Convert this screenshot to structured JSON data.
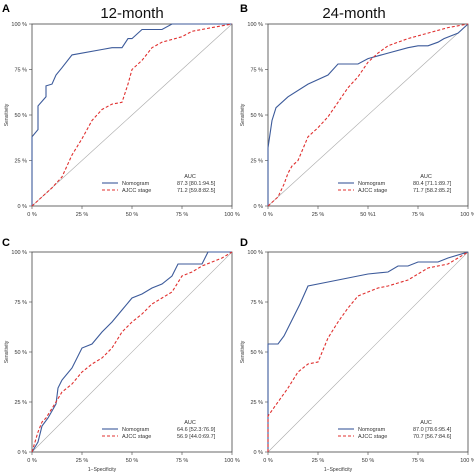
{
  "colors": {
    "nomogram": "#3c5a9a",
    "ajcc": "#e0302f",
    "diagonal": "#aaaaaa",
    "frame": "#444444"
  },
  "chart_data": [
    {
      "panel": "A",
      "type": "line",
      "title": "12-month",
      "xlabel": "",
      "ylabel": "Sensitivity",
      "xlim": [
        0,
        100
      ],
      "ylim": [
        0,
        100
      ],
      "x_ticks": [
        "0 %",
        "25 %",
        "50 %",
        "75 %",
        "100 %"
      ],
      "y_ticks": [
        "0 %",
        "25 %",
        "50 %",
        "75 %",
        "100 %"
      ],
      "legend": {
        "header": "AUC",
        "placement": "bottom-right"
      },
      "series": [
        {
          "name": "Nomogram",
          "auc": "87.3 [80.1:94.5]",
          "style": "solid",
          "points": [
            [
              0,
              0
            ],
            [
              0,
              38
            ],
            [
              3,
              42
            ],
            [
              3,
              55
            ],
            [
              7,
              60
            ],
            [
              7,
              66
            ],
            [
              10,
              67
            ],
            [
              12,
              72
            ],
            [
              15,
              76
            ],
            [
              20,
              83
            ],
            [
              35,
              86
            ],
            [
              40,
              87
            ],
            [
              45,
              87
            ],
            [
              48,
              92
            ],
            [
              50,
              92
            ],
            [
              55,
              97
            ],
            [
              65,
              97
            ],
            [
              70,
              100
            ],
            [
              100,
              100
            ]
          ]
        },
        {
          "name": "AJCC stage",
          "auc": "71.2 [59.8:82.5]",
          "style": "dashed",
          "points": [
            [
              0,
              0
            ],
            [
              5,
              5
            ],
            [
              10,
              10
            ],
            [
              15,
              16
            ],
            [
              20,
              28
            ],
            [
              25,
              37
            ],
            [
              30,
              47
            ],
            [
              35,
              53
            ],
            [
              40,
              56
            ],
            [
              45,
              57
            ],
            [
              48,
              67
            ],
            [
              50,
              75
            ],
            [
              55,
              80
            ],
            [
              60,
              87
            ],
            [
              65,
              90
            ],
            [
              75,
              93
            ],
            [
              80,
              96
            ],
            [
              90,
              98
            ],
            [
              100,
              100
            ]
          ]
        }
      ]
    },
    {
      "panel": "B",
      "type": "line",
      "title": "24-month",
      "xlabel": "",
      "ylabel": "Sensitivity",
      "xlim": [
        0,
        100
      ],
      "ylim": [
        0,
        100
      ],
      "x_ticks": [
        "0 %",
        "25 %",
        "50 %1",
        "75 %",
        "100 %"
      ],
      "y_ticks": [
        "0 %",
        "25 %",
        "50 %",
        "75 %",
        "100 %"
      ],
      "legend": {
        "header": "AUC",
        "placement": "bottom-right"
      },
      "series": [
        {
          "name": "Nomogram",
          "auc": "80.4 [71.1:89.7]",
          "style": "solid",
          "points": [
            [
              0,
              0
            ],
            [
              0,
              32
            ],
            [
              2,
              47
            ],
            [
              4,
              54
            ],
            [
              10,
              60
            ],
            [
              20,
              67
            ],
            [
              30,
              72
            ],
            [
              35,
              78
            ],
            [
              45,
              78
            ],
            [
              50,
              81
            ],
            [
              60,
              84
            ],
            [
              70,
              87
            ],
            [
              75,
              88
            ],
            [
              80,
              88
            ],
            [
              85,
              90
            ],
            [
              88,
              92
            ],
            [
              95,
              95
            ],
            [
              100,
              100
            ]
          ]
        },
        {
          "name": "AJCC stage",
          "auc": "71.7 [58.2:85.2]",
          "style": "dashed",
          "points": [
            [
              0,
              0
            ],
            [
              5,
              5
            ],
            [
              8,
              12
            ],
            [
              10,
              18
            ],
            [
              12,
              22
            ],
            [
              15,
              25
            ],
            [
              20,
              38
            ],
            [
              25,
              43
            ],
            [
              30,
              49
            ],
            [
              35,
              57
            ],
            [
              40,
              65
            ],
            [
              45,
              71
            ],
            [
              50,
              79
            ],
            [
              55,
              84
            ],
            [
              60,
              88
            ],
            [
              70,
              92
            ],
            [
              80,
              95
            ],
            [
              90,
              98
            ],
            [
              100,
              100
            ]
          ]
        }
      ]
    },
    {
      "panel": "C",
      "type": "line",
      "title": "",
      "xlabel": "1−Specificity",
      "ylabel": "Sensitivity",
      "xlim": [
        0,
        100
      ],
      "ylim": [
        0,
        100
      ],
      "x_ticks": [
        "0 %",
        "25 %",
        "50 %",
        "75 %",
        "100 %"
      ],
      "y_ticks": [
        "0 %",
        "25 %",
        "50 %",
        "75 %",
        "100 %"
      ],
      "legend": {
        "header": "AUC",
        "placement": "bottom-right"
      },
      "series": [
        {
          "name": "Nomogram",
          "auc": "64.6 [52.3:76.9]",
          "style": "solid",
          "points": [
            [
              0,
              0
            ],
            [
              3,
              5
            ],
            [
              5,
              13
            ],
            [
              8,
              17
            ],
            [
              12,
              24
            ],
            [
              13,
              32
            ],
            [
              15,
              36
            ],
            [
              20,
              42
            ],
            [
              25,
              52
            ],
            [
              30,
              54
            ],
            [
              35,
              60
            ],
            [
              40,
              65
            ],
            [
              45,
              71
            ],
            [
              50,
              77
            ],
            [
              55,
              79
            ],
            [
              60,
              82
            ],
            [
              65,
              84
            ],
            [
              70,
              88
            ],
            [
              73,
              94
            ],
            [
              80,
              94
            ],
            [
              85,
              94
            ],
            [
              88,
              100
            ],
            [
              100,
              100
            ]
          ]
        },
        {
          "name": "AJCC stage",
          "auc": "56.9 [44.0:69.7]",
          "style": "dashed",
          "points": [
            [
              0,
              0
            ],
            [
              3,
              10
            ],
            [
              5,
              15
            ],
            [
              7,
              17
            ],
            [
              12,
              25
            ],
            [
              15,
              30
            ],
            [
              20,
              34
            ],
            [
              25,
              40
            ],
            [
              30,
              44
            ],
            [
              35,
              47
            ],
            [
              40,
              52
            ],
            [
              45,
              60
            ],
            [
              50,
              65
            ],
            [
              55,
              69
            ],
            [
              60,
              74
            ],
            [
              65,
              77
            ],
            [
              70,
              80
            ],
            [
              75,
              88
            ],
            [
              80,
              90
            ],
            [
              85,
              93
            ],
            [
              90,
              95
            ],
            [
              95,
              97
            ],
            [
              100,
              100
            ]
          ]
        }
      ]
    },
    {
      "panel": "D",
      "type": "line",
      "title": "",
      "xlabel": "1−Specificity",
      "ylabel": "Sensitivity",
      "xlim": [
        0,
        100
      ],
      "ylim": [
        0,
        100
      ],
      "x_ticks": [
        "0 %",
        "25 %",
        "50 %",
        "75 %",
        "100 %"
      ],
      "y_ticks": [
        "0 %",
        "25 %",
        "50 %",
        "75 %",
        "100 %"
      ],
      "legend": {
        "header": "AUC",
        "placement": "bottom-right"
      },
      "series": [
        {
          "name": "Nomogram",
          "auc": "87.0 [78.6:95.4]",
          "style": "solid",
          "points": [
            [
              0,
              0
            ],
            [
              0,
              54
            ],
            [
              5,
              54
            ],
            [
              8,
              58
            ],
            [
              12,
              66
            ],
            [
              16,
              74
            ],
            [
              20,
              83
            ],
            [
              30,
              85
            ],
            [
              40,
              87
            ],
            [
              50,
              89
            ],
            [
              60,
              90
            ],
            [
              65,
              93
            ],
            [
              70,
              93
            ],
            [
              75,
              95
            ],
            [
              85,
              95
            ],
            [
              90,
              97
            ],
            [
              100,
              100
            ]
          ]
        },
        {
          "name": "AJCC stage",
          "auc": "70.7 [56.7:84.6]",
          "style": "dashed",
          "points": [
            [
              0,
              0
            ],
            [
              0,
              18
            ],
            [
              5,
              25
            ],
            [
              10,
              32
            ],
            [
              15,
              40
            ],
            [
              20,
              44
            ],
            [
              25,
              45
            ],
            [
              30,
              57
            ],
            [
              35,
              65
            ],
            [
              40,
              72
            ],
            [
              45,
              78
            ],
            [
              50,
              80
            ],
            [
              55,
              82
            ],
            [
              60,
              83
            ],
            [
              70,
              86
            ],
            [
              75,
              89
            ],
            [
              80,
              92
            ],
            [
              90,
              94
            ],
            [
              100,
              100
            ]
          ]
        }
      ]
    }
  ]
}
